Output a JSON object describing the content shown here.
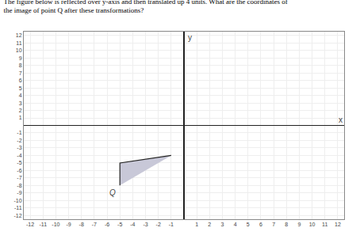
{
  "chart_data": {
    "type": "polygon",
    "title": "The figure below is reflected over y-axis and then translated up 4 units. What are the coordinates of\nthe image of point Q after these transformations?",
    "x": [
      -1,
      -5,
      -5
    ],
    "values": [
      -4,
      -5,
      -8
    ],
    "color": "#c8c8d8",
    "xlabel": "x",
    "ylabel": "y",
    "annotations": [
      {
        "text": "Q",
        "x": -5,
        "y": -8
      }
    ],
    "xlim": [
      -12.5,
      12.5
    ],
    "ylim": [
      -12.5,
      12.5
    ],
    "xticks": [
      -12,
      -11,
      -10,
      -9,
      -8,
      -7,
      -6,
      -5,
      -4,
      -3,
      -2,
      -1,
      1,
      2,
      3,
      4,
      5,
      6,
      7,
      8,
      9,
      10,
      11,
      12
    ],
    "yticks": [
      -12,
      -11,
      -10,
      -9,
      -8,
      -7,
      -6,
      -5,
      -4,
      -3,
      -2,
      -1,
      1,
      2,
      3,
      4,
      5,
      6,
      7,
      8,
      9,
      10,
      11,
      12
    ],
    "grid": true
  }
}
